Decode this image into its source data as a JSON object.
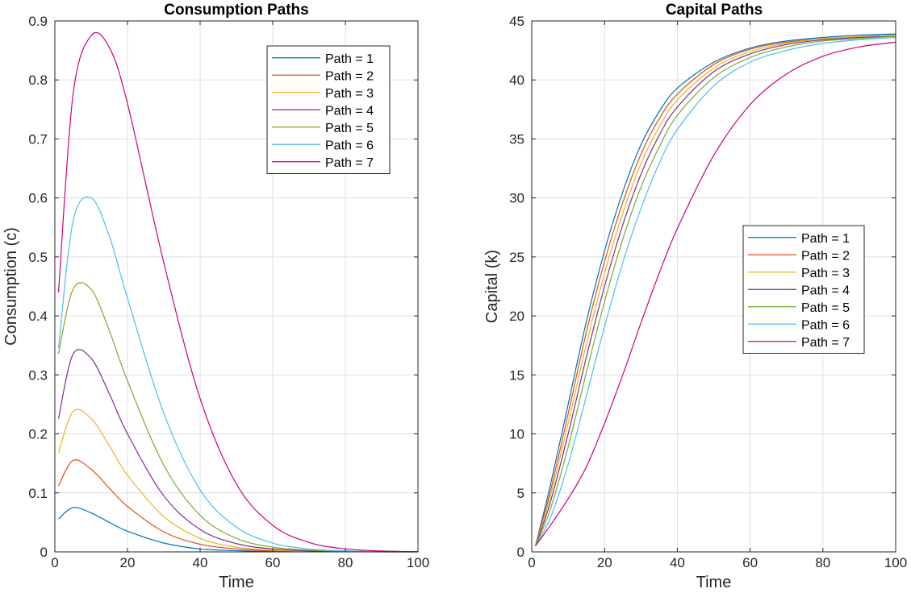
{
  "chart_data": [
    {
      "type": "line",
      "title": "Consumption Paths",
      "xlabel": "Time",
      "ylabel": "Consumption (c)",
      "xlim": [
        0,
        100
      ],
      "ylim": [
        0,
        0.9
      ],
      "xticks": [
        0,
        20,
        40,
        60,
        80,
        100
      ],
      "yticks": [
        0,
        0.1,
        0.2,
        0.3,
        0.4,
        0.5,
        0.6,
        0.7,
        0.8,
        0.9
      ],
      "grid": true,
      "legend_position": "top-right",
      "x": [
        1,
        5,
        10,
        15,
        20,
        30,
        40,
        50,
        60,
        70,
        80,
        90,
        100
      ],
      "series": [
        {
          "name": "Path = 1",
          "color": "#0072BD",
          "values": [
            0.056,
            0.075,
            0.066,
            0.05,
            0.035,
            0.015,
            0.005,
            0.002,
            0.0006,
            0.0002,
            0.0001,
            0.0,
            0.0
          ]
        },
        {
          "name": "Path = 2",
          "color": "#D95319",
          "values": [
            0.112,
            0.155,
            0.14,
            0.108,
            0.077,
            0.034,
            0.013,
            0.005,
            0.0018,
            0.0006,
            0.0002,
            0.0001,
            0.0
          ]
        },
        {
          "name": "Path = 3",
          "color": "#EDB120",
          "values": [
            0.168,
            0.238,
            0.226,
            0.18,
            0.13,
            0.06,
            0.023,
            0.008,
            0.003,
            0.001,
            0.0004,
            0.0001,
            0.0
          ]
        },
        {
          "name": "Path = 4",
          "color": "#7E2F8E",
          "values": [
            0.226,
            0.335,
            0.328,
            0.268,
            0.2,
            0.095,
            0.038,
            0.014,
            0.005,
            0.0017,
            0.0006,
            0.0002,
            0.0001
          ]
        },
        {
          "name": "Path = 5",
          "color": "#77AC30",
          "values": [
            0.336,
            0.445,
            0.445,
            0.375,
            0.29,
            0.147,
            0.062,
            0.023,
            0.008,
            0.003,
            0.001,
            0.0003,
            0.0001
          ]
        },
        {
          "name": "Path = 6",
          "color": "#4DBEEE",
          "values": [
            0.345,
            0.56,
            0.6,
            0.535,
            0.43,
            0.235,
            0.105,
            0.042,
            0.015,
            0.005,
            0.0017,
            0.0005,
            0.0001
          ]
        },
        {
          "name": "Path = 7",
          "color": "#CC0080",
          "values": [
            0.44,
            0.775,
            0.875,
            0.855,
            0.76,
            0.49,
            0.26,
            0.115,
            0.045,
            0.016,
            0.005,
            0.0015,
            0.0003
          ]
        }
      ]
    },
    {
      "type": "line",
      "title": "Capital Paths",
      "xlabel": "Time",
      "ylabel": "Capital (k)",
      "xlim": [
        0,
        100
      ],
      "ylim": [
        0,
        45
      ],
      "xticks": [
        0,
        20,
        40,
        60,
        80,
        100
      ],
      "yticks": [
        0,
        5,
        10,
        15,
        20,
        25,
        30,
        35,
        40,
        45
      ],
      "grid": true,
      "legend_position": "right",
      "x": [
        1,
        5,
        10,
        15,
        20,
        25,
        30,
        35,
        40,
        50,
        60,
        70,
        80,
        90,
        100
      ],
      "series": [
        {
          "name": "Path = 1",
          "color": "#0072BD",
          "values": [
            0.5,
            5.5,
            12.5,
            19.5,
            25.5,
            30.5,
            34.5,
            37.3,
            39.3,
            41.5,
            42.7,
            43.3,
            43.6,
            43.8,
            43.9
          ]
        },
        {
          "name": "Path = 2",
          "color": "#D95319",
          "values": [
            0.5,
            5.0,
            11.7,
            18.6,
            24.6,
            29.6,
            33.7,
            36.7,
            38.8,
            41.3,
            42.6,
            43.2,
            43.5,
            43.7,
            43.8
          ]
        },
        {
          "name": "Path = 3",
          "color": "#EDB120",
          "values": [
            0.5,
            4.6,
            10.9,
            17.6,
            23.6,
            28.7,
            32.9,
            36.0,
            38.3,
            41.0,
            42.4,
            43.1,
            43.5,
            43.7,
            43.8
          ]
        },
        {
          "name": "Path = 4",
          "color": "#7E2F8E",
          "values": [
            0.5,
            4.1,
            10.0,
            16.5,
            22.5,
            27.7,
            32.0,
            35.3,
            37.7,
            40.7,
            42.2,
            43.0,
            43.4,
            43.6,
            43.7
          ]
        },
        {
          "name": "Path = 5",
          "color": "#77AC30",
          "values": [
            0.5,
            3.5,
            8.9,
            15.2,
            21.2,
            26.5,
            30.9,
            34.3,
            37.0,
            40.2,
            41.9,
            42.8,
            43.3,
            43.5,
            43.7
          ]
        },
        {
          "name": "Path = 6",
          "color": "#4DBEEE",
          "values": [
            0.5,
            2.8,
            7.4,
            13.2,
            19.1,
            24.5,
            29.1,
            32.9,
            35.8,
            39.5,
            41.5,
            42.5,
            43.1,
            43.4,
            43.6
          ]
        },
        {
          "name": "Path = 7",
          "color": "#CC0080",
          "values": [
            0.5,
            2.2,
            4.5,
            7.2,
            10.9,
            15.0,
            19.4,
            23.6,
            27.4,
            33.6,
            37.9,
            40.5,
            42.0,
            42.8,
            43.2
          ]
        }
      ]
    }
  ]
}
